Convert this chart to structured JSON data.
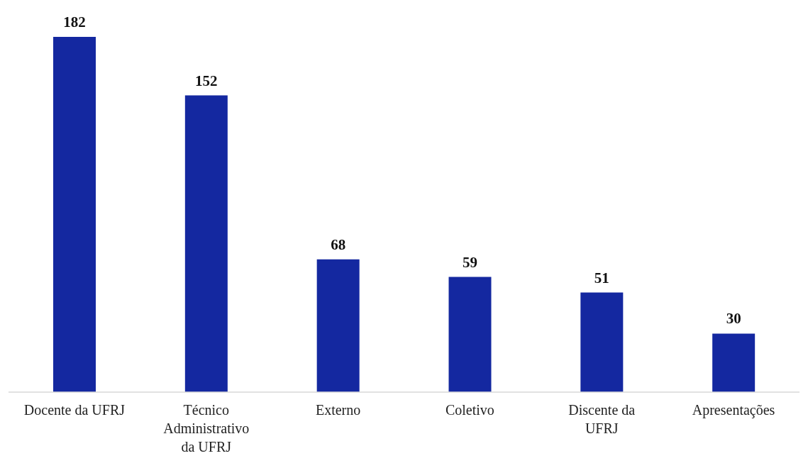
{
  "chart_data": {
    "type": "bar",
    "categories": [
      "Docente da UFRJ",
      "Técnico Administrativo da UFRJ",
      "Externo",
      "Coletivo",
      "Discente da UFRJ",
      "Apresentações"
    ],
    "values": [
      182,
      152,
      68,
      59,
      51,
      30
    ],
    "color": "#1428a0",
    "data_labels": true,
    "grid": false,
    "legend": false
  }
}
